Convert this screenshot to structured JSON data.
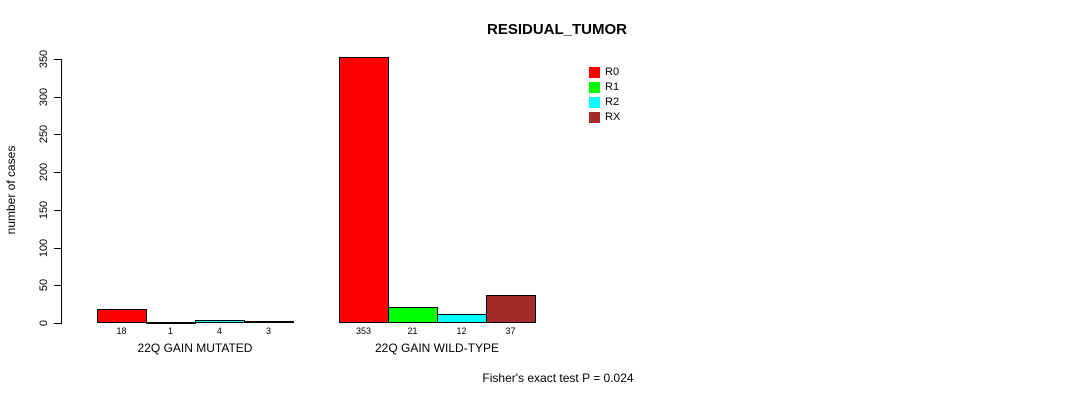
{
  "chart_data": {
    "type": "bar",
    "title": "RESIDUAL_TUMOR",
    "ylabel": "number of cases",
    "xlabel": "",
    "categories": [
      "22Q GAIN MUTATED",
      "22Q GAIN WILD-TYPE"
    ],
    "series": [
      {
        "name": "R0",
        "color": "#ff0000",
        "values": [
          18,
          353
        ]
      },
      {
        "name": "R1",
        "color": "#00ff00",
        "values": [
          1,
          21
        ]
      },
      {
        "name": "R2",
        "color": "#00ffff",
        "values": [
          4,
          12
        ]
      },
      {
        "name": "RX",
        "color": "#a52a2a",
        "values": [
          3,
          37
        ]
      }
    ],
    "ylim": [
      0,
      350
    ],
    "yticks": [
      0,
      50,
      100,
      150,
      200,
      250,
      300,
      350
    ],
    "grid": false,
    "legend_position": "top-right",
    "legend_entries": [
      "R0",
      "R1",
      "R2",
      "RX"
    ],
    "bar_outline_color": "#000000",
    "value_labels_shown": true,
    "annotation": "Fisher's exact test P = 0.024"
  }
}
